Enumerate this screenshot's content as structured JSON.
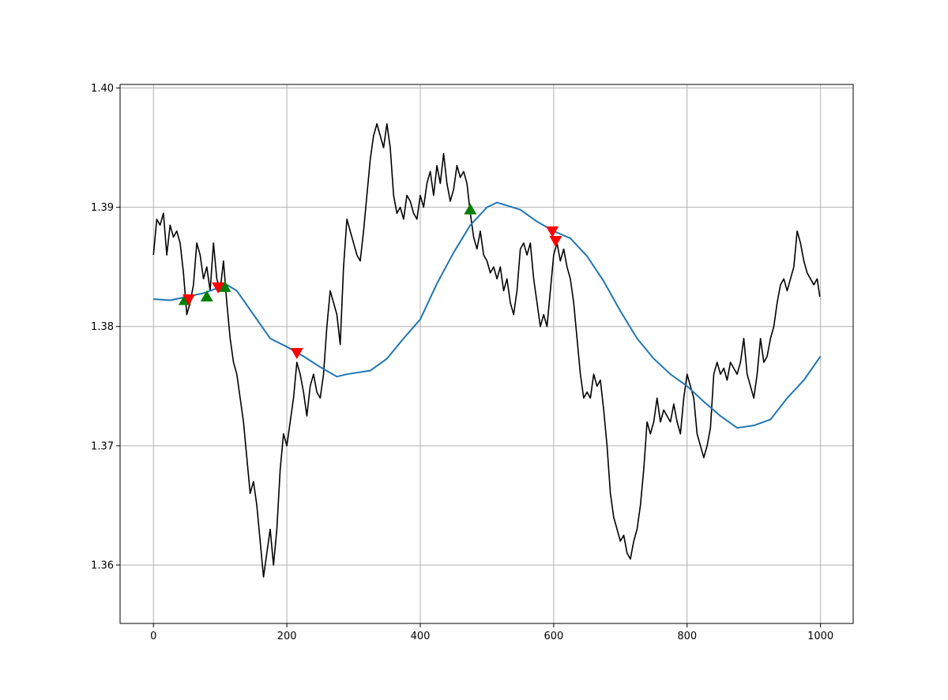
{
  "chart_data": {
    "type": "line",
    "xlim": [
      -50,
      1049
    ],
    "ylim": [
      1.3551,
      1.4003
    ],
    "xticks": [
      0,
      200,
      400,
      600,
      800,
      1000
    ],
    "yticks": [
      1.36,
      1.37,
      1.38,
      1.39,
      {
        "value": 1.4,
        "label": "1.40"
      }
    ],
    "grid": true,
    "series": [
      {
        "color": "black",
        "marker": "line",
        "x": [
          0,
          5,
          10,
          15,
          20,
          25,
          30,
          35,
          40,
          45,
          50,
          55,
          60,
          65,
          70,
          75,
          80,
          85,
          90,
          95,
          100,
          105,
          110,
          115,
          120,
          125,
          130,
          135,
          140,
          145,
          150,
          155,
          160,
          165,
          170,
          175,
          180,
          185,
          190,
          195,
          200,
          205,
          210,
          215,
          220,
          225,
          230,
          235,
          240,
          245,
          250,
          255,
          260,
          265,
          270,
          275,
          280,
          285,
          290,
          295,
          300,
          305,
          310,
          315,
          320,
          325,
          330,
          335,
          340,
          345,
          350,
          355,
          360,
          365,
          370,
          375,
          380,
          385,
          390,
          395,
          400,
          405,
          410,
          415,
          420,
          425,
          430,
          435,
          440,
          445,
          450,
          455,
          460,
          465,
          470,
          475,
          480,
          485,
          490,
          495,
          500,
          505,
          510,
          515,
          520,
          525,
          530,
          535,
          540,
          545,
          550,
          555,
          560,
          565,
          570,
          575,
          580,
          585,
          590,
          595,
          600,
          605,
          610,
          615,
          620,
          625,
          630,
          635,
          640,
          645,
          650,
          655,
          660,
          665,
          670,
          675,
          680,
          685,
          690,
          695,
          700,
          705,
          710,
          715,
          720,
          725,
          730,
          735,
          740,
          745,
          750,
          755,
          760,
          765,
          770,
          775,
          780,
          785,
          790,
          795,
          800,
          805,
          810,
          815,
          820,
          825,
          830,
          835,
          840,
          845,
          850,
          855,
          860,
          865,
          870,
          875,
          880,
          885,
          890,
          895,
          900,
          905,
          910,
          915,
          920,
          925,
          930,
          935,
          940,
          945,
          950,
          955,
          960,
          965,
          970,
          975,
          980,
          985,
          990,
          995,
          999
        ],
        "values": [
          1.386,
          1.389,
          1.3885,
          1.3895,
          1.386,
          1.3885,
          1.3875,
          1.388,
          1.387,
          1.3845,
          1.381,
          1.382,
          1.3835,
          1.387,
          1.386,
          1.384,
          1.385,
          1.383,
          1.387,
          1.384,
          1.383,
          1.3855,
          1.382,
          1.379,
          1.377,
          1.376,
          1.374,
          1.372,
          1.369,
          1.366,
          1.367,
          1.365,
          1.362,
          1.359,
          1.361,
          1.363,
          1.36,
          1.363,
          1.368,
          1.371,
          1.37,
          1.372,
          1.374,
          1.377,
          1.376,
          1.3745,
          1.3725,
          1.375,
          1.376,
          1.3745,
          1.374,
          1.376,
          1.38,
          1.383,
          1.382,
          1.381,
          1.3785,
          1.385,
          1.389,
          1.388,
          1.387,
          1.386,
          1.3855,
          1.388,
          1.391,
          1.394,
          1.396,
          1.397,
          1.396,
          1.395,
          1.397,
          1.395,
          1.391,
          1.3895,
          1.39,
          1.389,
          1.391,
          1.3905,
          1.3895,
          1.389,
          1.391,
          1.39,
          1.392,
          1.393,
          1.391,
          1.3935,
          1.392,
          1.3945,
          1.392,
          1.3905,
          1.3915,
          1.3935,
          1.3925,
          1.393,
          1.392,
          1.3895,
          1.3875,
          1.3865,
          1.388,
          1.386,
          1.3855,
          1.3845,
          1.385,
          1.384,
          1.385,
          1.383,
          1.384,
          1.382,
          1.381,
          1.383,
          1.3865,
          1.387,
          1.386,
          1.387,
          1.384,
          1.382,
          1.38,
          1.381,
          1.38,
          1.383,
          1.386,
          1.387,
          1.3855,
          1.3865,
          1.385,
          1.384,
          1.382,
          1.379,
          1.376,
          1.374,
          1.3745,
          1.374,
          1.376,
          1.375,
          1.3755,
          1.373,
          1.37,
          1.366,
          1.364,
          1.363,
          1.362,
          1.3625,
          1.361,
          1.3605,
          1.362,
          1.363,
          1.365,
          1.368,
          1.372,
          1.371,
          1.372,
          1.374,
          1.372,
          1.373,
          1.3725,
          1.372,
          1.3735,
          1.372,
          1.371,
          1.374,
          1.376,
          1.375,
          1.374,
          1.371,
          1.37,
          1.369,
          1.37,
          1.3715,
          1.376,
          1.377,
          1.376,
          1.3765,
          1.3755,
          1.377,
          1.3765,
          1.376,
          1.377,
          1.379,
          1.376,
          1.375,
          1.374,
          1.376,
          1.379,
          1.377,
          1.3775,
          1.379,
          1.38,
          1.382,
          1.3835,
          1.384,
          1.383,
          1.384,
          1.385,
          1.388,
          1.387,
          1.3855,
          1.3845,
          1.384,
          1.3835,
          1.384,
          1.3825
        ]
      },
      {
        "color": "#1f77b4",
        "marker": "line",
        "x": [
          0,
          25,
          50,
          75,
          100,
          110,
          125,
          150,
          175,
          200,
          225,
          250,
          275,
          290,
          325,
          350,
          375,
          400,
          425,
          450,
          475,
          500,
          515,
          550,
          575,
          600,
          625,
          650,
          675,
          700,
          725,
          750,
          775,
          800,
          825,
          850,
          875,
          900,
          925,
          950,
          975,
          1000
        ],
        "values": [
          1.3823,
          1.3822,
          1.3825,
          1.3828,
          1.3833,
          1.3835,
          1.383,
          1.381,
          1.379,
          1.3783,
          1.3775,
          1.3766,
          1.3758,
          1.376,
          1.3763,
          1.3773,
          1.379,
          1.3806,
          1.3836,
          1.3862,
          1.3885,
          1.39,
          1.3904,
          1.3898,
          1.3888,
          1.388,
          1.3874,
          1.3859,
          1.3838,
          1.3813,
          1.379,
          1.3773,
          1.376,
          1.375,
          1.3737,
          1.3725,
          1.3715,
          1.3717,
          1.3722,
          1.374,
          1.3755,
          1.3775
        ]
      },
      {
        "color": "green",
        "marker": "^",
        "x": [
          47,
          80,
          107,
          475
        ],
        "values": [
          1.3822,
          1.3825,
          1.3833,
          1.3898
        ]
      },
      {
        "color": "red",
        "marker": "v",
        "x": [
          53,
          97,
          215,
          598,
          603
        ],
        "values": [
          1.3823,
          1.3833,
          1.3778,
          1.388,
          1.3872
        ]
      }
    ]
  }
}
